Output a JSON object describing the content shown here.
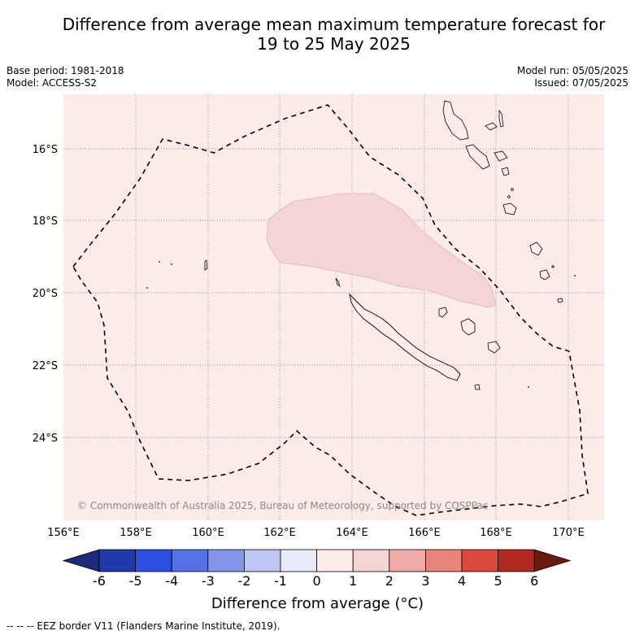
{
  "title_line1": "Difference from average mean maximum temperature forecast for",
  "title_line2": "19 to 25 May 2025",
  "left_meta": {
    "base_period": "Base period: 1981-2018",
    "model": "Model: ACCESS-S2"
  },
  "right_meta": {
    "model_run": "Model run: 05/05/2025",
    "issued": "Issued: 07/05/2025"
  },
  "map": {
    "lon_ticks": [
      "156°E",
      "158°E",
      "160°E",
      "162°E",
      "164°E",
      "166°E",
      "168°E",
      "170°E"
    ],
    "lat_ticks": [
      "16°S",
      "18°S",
      "20°S",
      "22°S",
      "24°S"
    ],
    "background_color": "#fcebe9",
    "anomaly_patch_color": "#f5d4d4",
    "copyright": "© Commonwealth of Australia 2025, Bureau of Meteorology, supported by COSPPac"
  },
  "colorbar": {
    "ticks": [
      "-6",
      "-5",
      "-4",
      "-3",
      "-2",
      "-1",
      "0",
      "1",
      "2",
      "3",
      "4",
      "5",
      "6"
    ],
    "colors": [
      "#1f3aa8",
      "#2d4fe0",
      "#5670e8",
      "#8596ea",
      "#bfc6f5",
      "#e8ebfb",
      "#fdebe8",
      "#f5d4d4",
      "#f0aba7",
      "#e8847b",
      "#dc4a3e",
      "#b02a22"
    ],
    "under_color": "#1c2a7a",
    "over_color": "#6b1a12",
    "title": "Difference from average (°C)"
  },
  "footer": "-- -- -- EEZ border V11 (Flanders Marine Institute, 2019)."
}
